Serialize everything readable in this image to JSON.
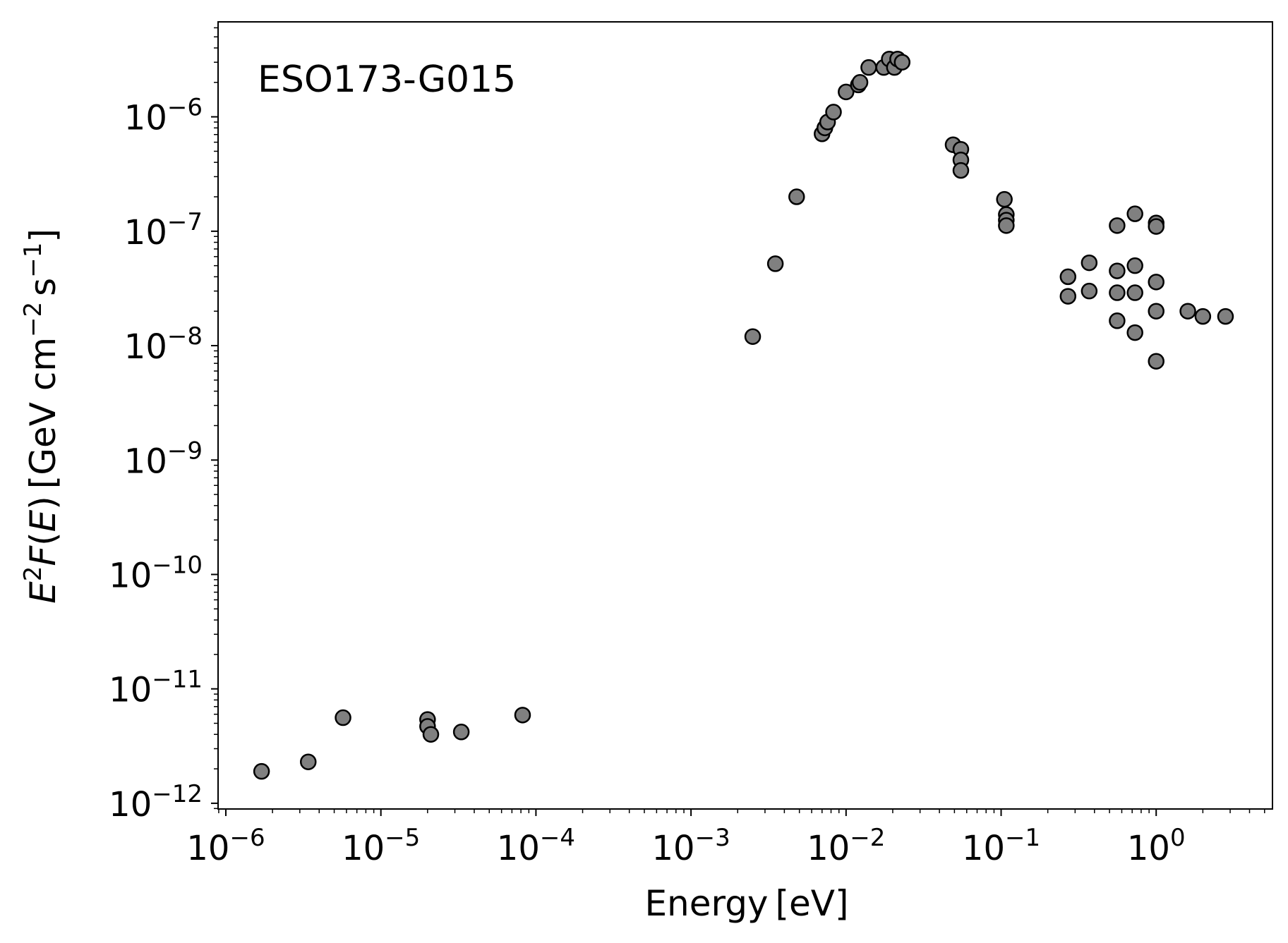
{
  "chart_data": {
    "type": "scatter",
    "annotation": "ESO173-G015",
    "xlabel": {
      "base": "Energy",
      "unit": "[eV]"
    },
    "ylabel": {
      "a": "E",
      "a_sup": "2",
      "b": "F",
      "c": "(",
      "d": "E",
      "e": ")",
      "f": "[GeV cm",
      "f_sup": "−2",
      "g": "s",
      "g_sup": "−1",
      "h": "]"
    },
    "x_scale": "log",
    "y_scale": "log",
    "xlim_exp": [
      -6.05,
      0.75
    ],
    "ylim_exp": [
      -12.05,
      -5.17
    ],
    "x_ticks": [
      {
        "base": "10",
        "exp": "−6",
        "value_exp": -6
      },
      {
        "base": "10",
        "exp": "−5",
        "value_exp": -5
      },
      {
        "base": "10",
        "exp": "−4",
        "value_exp": -4
      },
      {
        "base": "10",
        "exp": "−3",
        "value_exp": -3
      },
      {
        "base": "10",
        "exp": "−2",
        "value_exp": -2
      },
      {
        "base": "10",
        "exp": "−1",
        "value_exp": -1
      },
      {
        "base": "10",
        "exp": "0",
        "value_exp": 0
      }
    ],
    "y_ticks": [
      {
        "base": "10",
        "exp": "−12",
        "value_exp": -12
      },
      {
        "base": "10",
        "exp": "−11",
        "value_exp": -11
      },
      {
        "base": "10",
        "exp": "−10",
        "value_exp": -10
      },
      {
        "base": "10",
        "exp": "−9",
        "value_exp": -9
      },
      {
        "base": "10",
        "exp": "−8",
        "value_exp": -8
      },
      {
        "base": "10",
        "exp": "−7",
        "value_exp": -7
      },
      {
        "base": "10",
        "exp": "−6",
        "value_exp": -6
      }
    ],
    "marker_fill": "#808080",
    "marker_edge": "#000000",
    "points": [
      [
        1.7e-06,
        1.9e-12
      ],
      [
        3.4e-06,
        2.3e-12
      ],
      [
        5.7e-06,
        5.6e-12
      ],
      [
        2e-05,
        5.4e-12
      ],
      [
        2e-05,
        4.7e-12
      ],
      [
        2.1e-05,
        4e-12
      ],
      [
        3.3e-05,
        4.2e-12
      ],
      [
        8.2e-05,
        5.9e-12
      ],
      [
        0.0025,
        1.2e-08
      ],
      [
        0.0035,
        5.2e-08
      ],
      [
        0.0048,
        2e-07
      ],
      [
        0.007,
        7.1e-07
      ],
      [
        0.0073,
        8e-07
      ],
      [
        0.0076,
        9e-07
      ],
      [
        0.0083,
        1.1e-06
      ],
      [
        0.01,
        1.65e-06
      ],
      [
        0.012,
        1.9e-06
      ],
      [
        0.0123,
        2e-06
      ],
      [
        0.014,
        2.7e-06
      ],
      [
        0.0175,
        2.7e-06
      ],
      [
        0.019,
        3.2e-06
      ],
      [
        0.0205,
        2.7e-06
      ],
      [
        0.0215,
        3.2e-06
      ],
      [
        0.023,
        3e-06
      ],
      [
        0.049,
        5.7e-07
      ],
      [
        0.055,
        5.2e-07
      ],
      [
        0.055,
        4.2e-07
      ],
      [
        0.055,
        3.4e-07
      ],
      [
        0.105,
        1.9e-07
      ],
      [
        0.108,
        1.4e-07
      ],
      [
        0.108,
        1.25e-07
      ],
      [
        0.108,
        1.12e-07
      ],
      [
        0.27,
        4e-08
      ],
      [
        0.27,
        2.7e-08
      ],
      [
        0.37,
        5.3e-08
      ],
      [
        0.37,
        3e-08
      ],
      [
        0.56,
        1.12e-07
      ],
      [
        0.56,
        4.5e-08
      ],
      [
        0.56,
        2.9e-08
      ],
      [
        0.56,
        1.65e-08
      ],
      [
        0.73,
        1.42e-07
      ],
      [
        0.73,
        5e-08
      ],
      [
        0.73,
        2.9e-08
      ],
      [
        0.73,
        1.3e-08
      ],
      [
        1.0,
        1.18e-07
      ],
      [
        1.0,
        1.1e-07
      ],
      [
        1.0,
        3.6e-08
      ],
      [
        1.0,
        2e-08
      ],
      [
        1.0,
        7.3e-09
      ],
      [
        1.6,
        2e-08
      ],
      [
        2.0,
        1.8e-08
      ],
      [
        2.8,
        1.8e-08
      ]
    ]
  }
}
